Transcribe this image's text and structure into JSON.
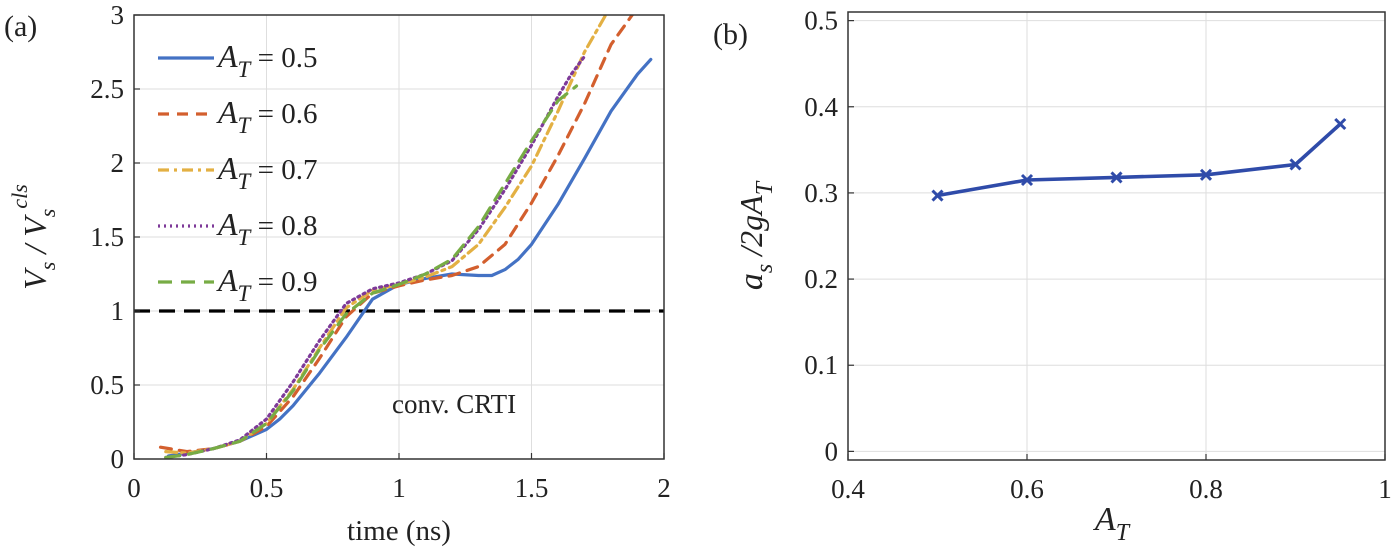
{
  "chart_data": [
    {
      "type": "line",
      "panel_label": "(a)",
      "xlabel": "time (ns)",
      "ylabel": {
        "main": "V",
        "sub1": "s",
        "mid": " / V",
        "sub2": "s",
        "sup": "cls"
      },
      "xlim": [
        0,
        2
      ],
      "ylim": [
        0,
        3
      ],
      "xticks": [
        0,
        0.5,
        1,
        1.5,
        2
      ],
      "xtick_labels": [
        "0",
        "0.5",
        "1",
        "1.5",
        "2"
      ],
      "yticks": [
        0,
        0.5,
        1,
        1.5,
        2,
        2.5,
        3
      ],
      "ytick_labels": [
        "0",
        "0.5",
        "1",
        "1.5",
        "2",
        "2.5",
        "3"
      ],
      "grid": true,
      "legend_position": "top-left",
      "legend_var": {
        "main": "A",
        "sub": "T"
      },
      "annotation": "conv. CRTI",
      "reference_line": {
        "y": 1,
        "style": "dashed",
        "color": "#000000"
      },
      "series": [
        {
          "name": "= 0.5",
          "color": "#4472C4",
          "dash": "solid",
          "x": [
            0.13,
            0.2,
            0.3,
            0.4,
            0.5,
            0.55,
            0.6,
            0.7,
            0.8,
            0.9,
            1.0,
            1.1,
            1.2,
            1.3,
            1.35,
            1.4,
            1.45,
            1.5,
            1.6,
            1.7,
            1.8,
            1.9,
            1.95
          ],
          "y": [
            0.02,
            0.04,
            0.07,
            0.12,
            0.2,
            0.27,
            0.36,
            0.58,
            0.82,
            1.08,
            1.18,
            1.22,
            1.25,
            1.24,
            1.24,
            1.28,
            1.35,
            1.45,
            1.72,
            2.03,
            2.35,
            2.6,
            2.7
          ]
        },
        {
          "name": "= 0.6",
          "color": "#D35F2E",
          "dash": "11,8",
          "x": [
            0.1,
            0.2,
            0.3,
            0.4,
            0.5,
            0.6,
            0.7,
            0.8,
            0.9,
            1.0,
            1.1,
            1.2,
            1.3,
            1.4,
            1.5,
            1.6,
            1.7,
            1.8,
            1.88
          ],
          "y": [
            0.08,
            0.05,
            0.07,
            0.12,
            0.22,
            0.42,
            0.68,
            0.96,
            1.12,
            1.17,
            1.21,
            1.24,
            1.3,
            1.45,
            1.73,
            2.05,
            2.4,
            2.8,
            3.0
          ]
        },
        {
          "name": "= 0.7",
          "color": "#E3B043",
          "dash": "11,5,3,5",
          "x": [
            0.12,
            0.2,
            0.3,
            0.4,
            0.5,
            0.6,
            0.7,
            0.8,
            0.9,
            1.0,
            1.1,
            1.2,
            1.3,
            1.4,
            1.5,
            1.6,
            1.7,
            1.78
          ],
          "y": [
            0.05,
            0.04,
            0.07,
            0.12,
            0.24,
            0.47,
            0.75,
            1.02,
            1.14,
            1.18,
            1.23,
            1.3,
            1.45,
            1.7,
            1.98,
            2.35,
            2.75,
            3.0
          ]
        },
        {
          "name": "= 0.8",
          "color": "#7E3A99",
          "dash": "2,4",
          "x": [
            0.12,
            0.2,
            0.3,
            0.4,
            0.5,
            0.6,
            0.7,
            0.8,
            0.9,
            1.0,
            1.1,
            1.2,
            1.3,
            1.4,
            1.5,
            1.6,
            1.65,
            1.7
          ],
          "y": [
            0.01,
            0.03,
            0.07,
            0.13,
            0.27,
            0.52,
            0.8,
            1.05,
            1.15,
            1.19,
            1.25,
            1.34,
            1.55,
            1.82,
            2.12,
            2.45,
            2.6,
            2.72
          ]
        },
        {
          "name": "= 0.9",
          "color": "#77AC45",
          "dash": "14,9",
          "x": [
            0.12,
            0.2,
            0.3,
            0.4,
            0.5,
            0.6,
            0.7,
            0.8,
            0.9,
            1.0,
            1.1,
            1.2,
            1.3,
            1.4,
            1.5,
            1.6,
            1.67
          ],
          "y": [
            0.01,
            0.03,
            0.07,
            0.12,
            0.24,
            0.46,
            0.74,
            0.98,
            1.12,
            1.18,
            1.25,
            1.35,
            1.57,
            1.86,
            2.15,
            2.42,
            2.52
          ]
        }
      ]
    },
    {
      "type": "line",
      "panel_label": "(b)",
      "xlabel": {
        "main": "A",
        "sub": "T"
      },
      "ylabel": {
        "main": "a",
        "sub1": "s",
        "mid": " /2gA",
        "sub2": "T"
      },
      "xlim": [
        0.4,
        1.0
      ],
      "ylim": [
        -0.01,
        0.51
      ],
      "xticks": [
        0.4,
        0.6,
        0.8,
        1.0
      ],
      "xtick_labels": [
        "0.4",
        "0.6",
        "0.8",
        "1"
      ],
      "yticks": [
        0,
        0.1,
        0.2,
        0.3,
        0.4,
        0.5
      ],
      "ytick_labels": [
        "0",
        "0.1",
        "0.2",
        "0.3",
        "0.4",
        "0.5"
      ],
      "grid": true,
      "series": [
        {
          "color": "#2F4BA9",
          "marker": "x",
          "x": [
            0.5,
            0.6,
            0.7,
            0.8,
            0.9,
            0.95
          ],
          "y": [
            0.297,
            0.315,
            0.318,
            0.321,
            0.333,
            0.38
          ]
        }
      ]
    }
  ]
}
